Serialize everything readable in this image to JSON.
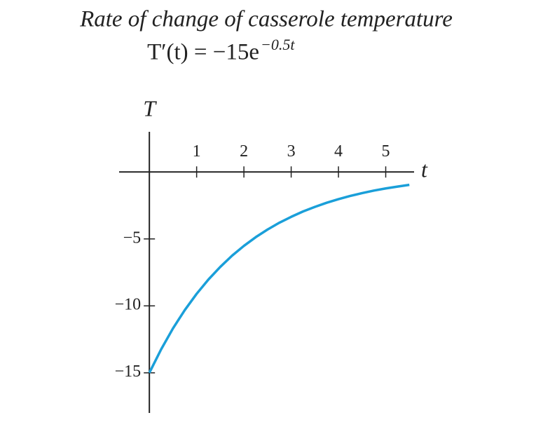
{
  "chart_data": {
    "type": "line",
    "title": "Rate of change of casserole temperature",
    "subtitle": "T′(t) = −15e",
    "subtitle_exponent": "−0.5t",
    "x_label": "t",
    "y_label": "T",
    "x": [
      0,
      0.25,
      0.5,
      0.75,
      1,
      1.25,
      1.5,
      1.75,
      2,
      2.25,
      2.5,
      2.75,
      3,
      3.25,
      3.5,
      3.75,
      4,
      4.25,
      4.5,
      4.75,
      5,
      5.25,
      5.5
    ],
    "series": [
      {
        "color": "#1a9fd9",
        "values": [
          -15,
          -13.24,
          -11.68,
          -10.31,
          -9.1,
          -8.03,
          -7.09,
          -6.25,
          -5.52,
          -4.87,
          -4.3,
          -3.79,
          -3.35,
          -2.95,
          -2.61,
          -2.3,
          -2.03,
          -1.79,
          -1.58,
          -1.39,
          -1.23,
          -1.09,
          -0.96
        ]
      }
    ],
    "xlim": [
      -0.64,
      5.6
    ],
    "ylim": [
      -18,
      3
    ],
    "xticks": [
      1,
      2,
      3,
      4,
      5
    ],
    "yticks": [
      {
        "value": -5,
        "label": "−5"
      },
      {
        "value": -10,
        "label": "−10"
      },
      {
        "value": -15,
        "label": "−15"
      }
    ],
    "grid": false
  }
}
